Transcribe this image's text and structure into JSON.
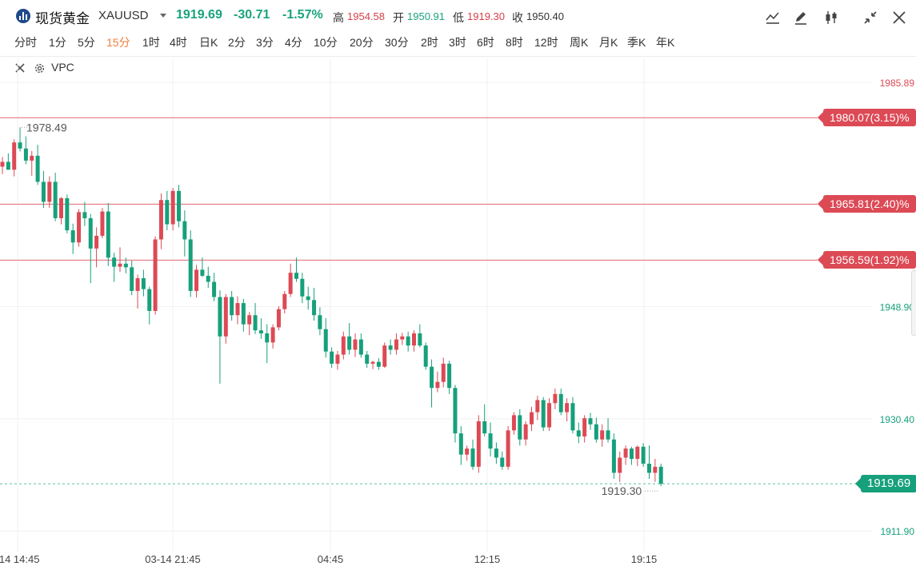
{
  "header": {
    "symbol_name": "现货黄金",
    "symbol_code": "XAUUSD",
    "price": "1919.69",
    "change": "-30.71",
    "change_pct": "-1.57%",
    "high_label": "高",
    "high_value": "1954.58",
    "open_label": "开",
    "open_value": "1950.91",
    "low_label": "低",
    "low_value": "1919.30",
    "close_label": "收",
    "close_value": "1950.40",
    "tools": [
      "line-style-icon",
      "draw-pencil-icon",
      "candle-type-icon",
      "collapse-icon",
      "close-icon"
    ]
  },
  "periods": {
    "items": [
      "分时",
      "1分",
      "5分",
      "15分",
      "1时",
      "4时",
      "日K",
      "2分",
      "3分",
      "4分",
      "10分",
      "20分",
      "30分",
      "2时",
      "3时",
      "6时",
      "8时",
      "12时",
      "周K",
      "月K",
      "季K",
      "年K"
    ],
    "active": "15分"
  },
  "indicator": {
    "label": "VPC"
  },
  "axis": {
    "price_ticks": [
      "1985.89",
      "1948.90",
      "1930.40",
      "1911.90"
    ],
    "time_ticks": [
      "-14 14:45",
      "03-14 21:45",
      "04:45",
      "12:15",
      "19:15"
    ]
  },
  "annotations": {
    "high_mark": "1978.49",
    "low_mark": "1919.30"
  },
  "levels": [
    {
      "label": "1980.07(3.15)%",
      "price": 1980.07
    },
    {
      "label": "1965.81(2.40)%",
      "price": 1965.81
    },
    {
      "label": "1956.59(1.92)%",
      "price": 1956.59
    }
  ],
  "current": {
    "label": "1919.69",
    "price": 1919.69
  },
  "colors": {
    "up": "#dc4a55",
    "down": "#16a07b",
    "level_line": "#e06670",
    "grid": "#f1f1f1"
  },
  "chart_data": {
    "type": "candlestick",
    "title": "",
    "ylim": [
      1908.5,
      1990
    ],
    "candles": [
      [
        1972.0,
        1973.6,
        1970.8,
        1972.8
      ],
      [
        1972.8,
        1974.2,
        1971.5,
        1971.5
      ],
      [
        1971.5,
        1976.5,
        1970.4,
        1976.0
      ],
      [
        1976.0,
        1978.49,
        1974.5,
        1975.0
      ],
      [
        1975.0,
        1977.0,
        1972.4,
        1973.0
      ],
      [
        1973.0,
        1974.6,
        1970.5,
        1973.8
      ],
      [
        1973.8,
        1975.6,
        1969.0,
        1969.5
      ],
      [
        1969.5,
        1971.3,
        1965.2,
        1966.2
      ],
      [
        1966.2,
        1970.4,
        1965.2,
        1969.5
      ],
      [
        1969.5,
        1971.0,
        1963.0,
        1963.5
      ],
      [
        1963.5,
        1967.0,
        1962.5,
        1966.8
      ],
      [
        1966.8,
        1967.4,
        1961.0,
        1961.5
      ],
      [
        1961.5,
        1962.6,
        1957.6,
        1959.5
      ],
      [
        1959.5,
        1965.0,
        1958.8,
        1964.5
      ],
      [
        1964.5,
        1966.2,
        1962.2,
        1963.5
      ],
      [
        1963.5,
        1964.2,
        1952.8,
        1958.5
      ],
      [
        1958.5,
        1962.0,
        1955.4,
        1960.6
      ],
      [
        1960.6,
        1965.2,
        1960.2,
        1964.6
      ],
      [
        1964.6,
        1966.0,
        1955.6,
        1957.0
      ],
      [
        1957.0,
        1957.8,
        1953.0,
        1955.5
      ],
      [
        1955.5,
        1958.7,
        1954.6,
        1956.0
      ],
      [
        1956.0,
        1957.0,
        1954.4,
        1955.4
      ],
      [
        1955.4,
        1956.5,
        1950.8,
        1951.5
      ],
      [
        1951.5,
        1954.2,
        1948.6,
        1953.6
      ],
      [
        1953.6,
        1955.0,
        1950.6,
        1951.8
      ],
      [
        1951.8,
        1952.2,
        1946.0,
        1948.2
      ],
      [
        1948.2,
        1960.5,
        1947.6,
        1960.0
      ],
      [
        1960.0,
        1967.6,
        1958.4,
        1966.5
      ],
      [
        1966.5,
        1968.0,
        1961.5,
        1962.5
      ],
      [
        1962.5,
        1968.5,
        1961.5,
        1968.0
      ],
      [
        1968.0,
        1969.0,
        1962.0,
        1963.0
      ],
      [
        1963.0,
        1964.8,
        1957.2,
        1960.0
      ],
      [
        1960.0,
        1961.5,
        1950.5,
        1951.5
      ],
      [
        1951.5,
        1955.8,
        1950.4,
        1955.0
      ],
      [
        1955.0,
        1957.0,
        1953.8,
        1954.0
      ],
      [
        1954.0,
        1955.5,
        1952.0,
        1953.0
      ],
      [
        1953.0,
        1954.5,
        1949.8,
        1950.5
      ],
      [
        1950.5,
        1951.6,
        1936.2,
        1944.0
      ],
      [
        1944.0,
        1951.0,
        1942.8,
        1950.5
      ],
      [
        1950.5,
        1951.5,
        1946.6,
        1947.5
      ],
      [
        1947.5,
        1950.6,
        1946.0,
        1949.5
      ],
      [
        1949.5,
        1950.2,
        1944.8,
        1946.0
      ],
      [
        1946.0,
        1948.0,
        1944.2,
        1947.5
      ],
      [
        1947.5,
        1949.5,
        1944.4,
        1945.0
      ],
      [
        1945.0,
        1947.0,
        1943.6,
        1944.5
      ],
      [
        1944.5,
        1946.0,
        1939.6,
        1943.0
      ],
      [
        1943.0,
        1946.0,
        1942.0,
        1945.5
      ],
      [
        1945.5,
        1949.0,
        1945.0,
        1948.5
      ],
      [
        1948.5,
        1951.5,
        1947.8,
        1951.0
      ],
      [
        1951.0,
        1956.0,
        1950.5,
        1954.5
      ],
      [
        1954.5,
        1957.0,
        1953.0,
        1953.5
      ],
      [
        1953.5,
        1954.5,
        1949.5,
        1950.6
      ],
      [
        1950.6,
        1952.2,
        1948.4,
        1950.0
      ],
      [
        1950.0,
        1952.0,
        1946.6,
        1947.5
      ],
      [
        1947.5,
        1948.8,
        1944.2,
        1945.2
      ],
      [
        1945.2,
        1947.0,
        1940.5,
        1941.5
      ],
      [
        1941.5,
        1942.2,
        1938.8,
        1939.5
      ],
      [
        1939.5,
        1941.6,
        1938.5,
        1941.0
      ],
      [
        1941.0,
        1944.8,
        1940.2,
        1944.0
      ],
      [
        1944.0,
        1946.2,
        1941.0,
        1941.8
      ],
      [
        1941.8,
        1944.5,
        1940.6,
        1943.5
      ],
      [
        1943.5,
        1944.5,
        1940.5,
        1941.0
      ],
      [
        1941.0,
        1941.6,
        1938.8,
        1939.5
      ],
      [
        1939.5,
        1940.0,
        1938.6,
        1939.8
      ],
      [
        1939.8,
        1940.4,
        1938.5,
        1939.0
      ],
      [
        1939.0,
        1943.0,
        1938.8,
        1942.5
      ],
      [
        1942.5,
        1943.5,
        1941.0,
        1941.8
      ],
      [
        1941.8,
        1944.5,
        1941.0,
        1943.5
      ],
      [
        1943.5,
        1944.6,
        1942.6,
        1944.0
      ],
      [
        1944.0,
        1944.8,
        1941.5,
        1942.5
      ],
      [
        1942.5,
        1945.0,
        1941.5,
        1944.5
      ],
      [
        1944.5,
        1946.0,
        1942.2,
        1942.5
      ],
      [
        1942.5,
        1943.0,
        1938.5,
        1939.0
      ],
      [
        1939.0,
        1940.2,
        1932.3,
        1935.5
      ],
      [
        1935.5,
        1938.2,
        1934.8,
        1936.5
      ],
      [
        1936.5,
        1940.5,
        1935.6,
        1939.5
      ],
      [
        1939.5,
        1940.0,
        1934.5,
        1935.5
      ],
      [
        1935.5,
        1936.0,
        1926.5,
        1928.0
      ],
      [
        1928.0,
        1929.2,
        1922.8,
        1924.5
      ],
      [
        1924.5,
        1926.0,
        1923.5,
        1925.5
      ],
      [
        1925.5,
        1927.0,
        1922.0,
        1922.5
      ],
      [
        1922.5,
        1931.0,
        1921.5,
        1930.0
      ],
      [
        1930.0,
        1932.8,
        1927.5,
        1928.0
      ],
      [
        1928.0,
        1929.8,
        1924.2,
        1925.5
      ],
      [
        1925.5,
        1926.5,
        1923.0,
        1924.0
      ],
      [
        1924.0,
        1925.0,
        1922.0,
        1922.5
      ],
      [
        1922.5,
        1929.2,
        1922.0,
        1928.5
      ],
      [
        1928.5,
        1931.5,
        1927.8,
        1931.0
      ],
      [
        1931.0,
        1932.0,
        1926.0,
        1927.0
      ],
      [
        1927.0,
        1930.0,
        1926.0,
        1929.5
      ],
      [
        1929.5,
        1932.4,
        1928.4,
        1931.5
      ],
      [
        1931.5,
        1934.2,
        1930.2,
        1933.5
      ],
      [
        1933.5,
        1934.0,
        1928.4,
        1929.0
      ],
      [
        1929.0,
        1933.8,
        1928.4,
        1933.0
      ],
      [
        1933.0,
        1935.4,
        1932.0,
        1934.5
      ],
      [
        1934.5,
        1935.4,
        1931.0,
        1931.5
      ],
      [
        1931.5,
        1933.8,
        1930.0,
        1933.0
      ],
      [
        1933.0,
        1934.0,
        1928.0,
        1928.5
      ],
      [
        1928.5,
        1929.8,
        1926.4,
        1927.5
      ],
      [
        1927.5,
        1931.0,
        1926.5,
        1930.5
      ],
      [
        1930.5,
        1931.4,
        1928.6,
        1929.5
      ],
      [
        1929.5,
        1930.6,
        1926.5,
        1927.0
      ],
      [
        1927.0,
        1929.5,
        1925.8,
        1928.5
      ],
      [
        1928.5,
        1930.5,
        1926.5,
        1927.0
      ],
      [
        1927.0,
        1928.0,
        1920.5,
        1921.5
      ],
      [
        1921.5,
        1925.0,
        1920.0,
        1924.0
      ],
      [
        1924.0,
        1926.0,
        1922.8,
        1925.5
      ],
      [
        1925.5,
        1925.8,
        1922.8,
        1923.8
      ],
      [
        1923.8,
        1926.0,
        1922.6,
        1925.8
      ],
      [
        1925.8,
        1926.4,
        1922.5,
        1923.0
      ],
      [
        1923.0,
        1926.0,
        1920.5,
        1921.5
      ],
      [
        1921.5,
        1923.8,
        1920.0,
        1922.5
      ],
      [
        1922.5,
        1923.0,
        1919.3,
        1919.69
      ]
    ]
  }
}
